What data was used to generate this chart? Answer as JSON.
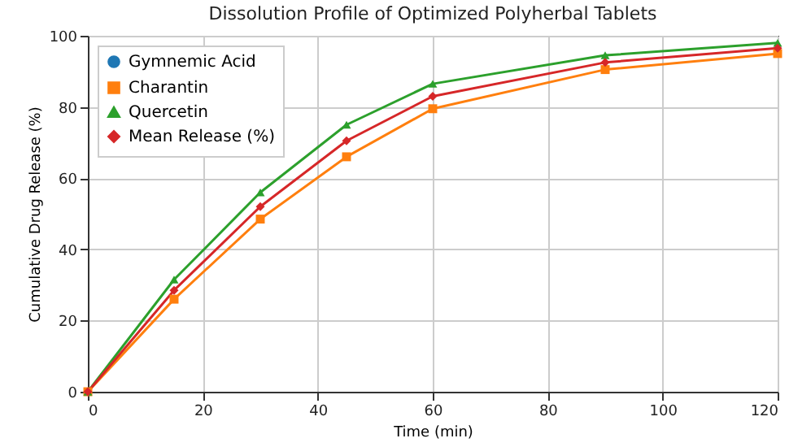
{
  "chart_data": {
    "type": "line",
    "title": "Dissolution Profile of Optimized Polyherbal Tablets",
    "xlabel": "Time (min)",
    "ylabel": "Cumulative Drug Release (%)",
    "x": [
      0,
      15,
      30,
      45,
      60,
      90,
      120
    ],
    "series": [
      {
        "name": "Gymnemic Acid",
        "color": "#1f77b4",
        "marker": "circle",
        "values": [
          null,
          null,
          null,
          null,
          null,
          null,
          null
        ]
      },
      {
        "name": "Charantin",
        "color": "#ff7f0e",
        "marker": "square",
        "values": [
          0,
          26,
          48.5,
          66,
          79.5,
          90.5,
          95
        ]
      },
      {
        "name": "Quercetin",
        "color": "#2ca02c",
        "marker": "triangle",
        "values": [
          0,
          31.5,
          56,
          75,
          86.5,
          94.5,
          98
        ]
      },
      {
        "name": "Mean Release (%)",
        "color": "#d62728",
        "marker": "diamond",
        "values": [
          0,
          28.5,
          52,
          70.5,
          83,
          92.5,
          96.5
        ]
      }
    ],
    "xlim": [
      0,
      120
    ],
    "xticks": [
      0,
      20,
      40,
      60,
      80,
      100,
      120
    ],
    "ylim": [
      0,
      100
    ],
    "yticks": [
      0,
      20,
      40,
      60,
      80,
      100
    ],
    "grid": true,
    "legend": "top left",
    "line_style": "solid"
  }
}
